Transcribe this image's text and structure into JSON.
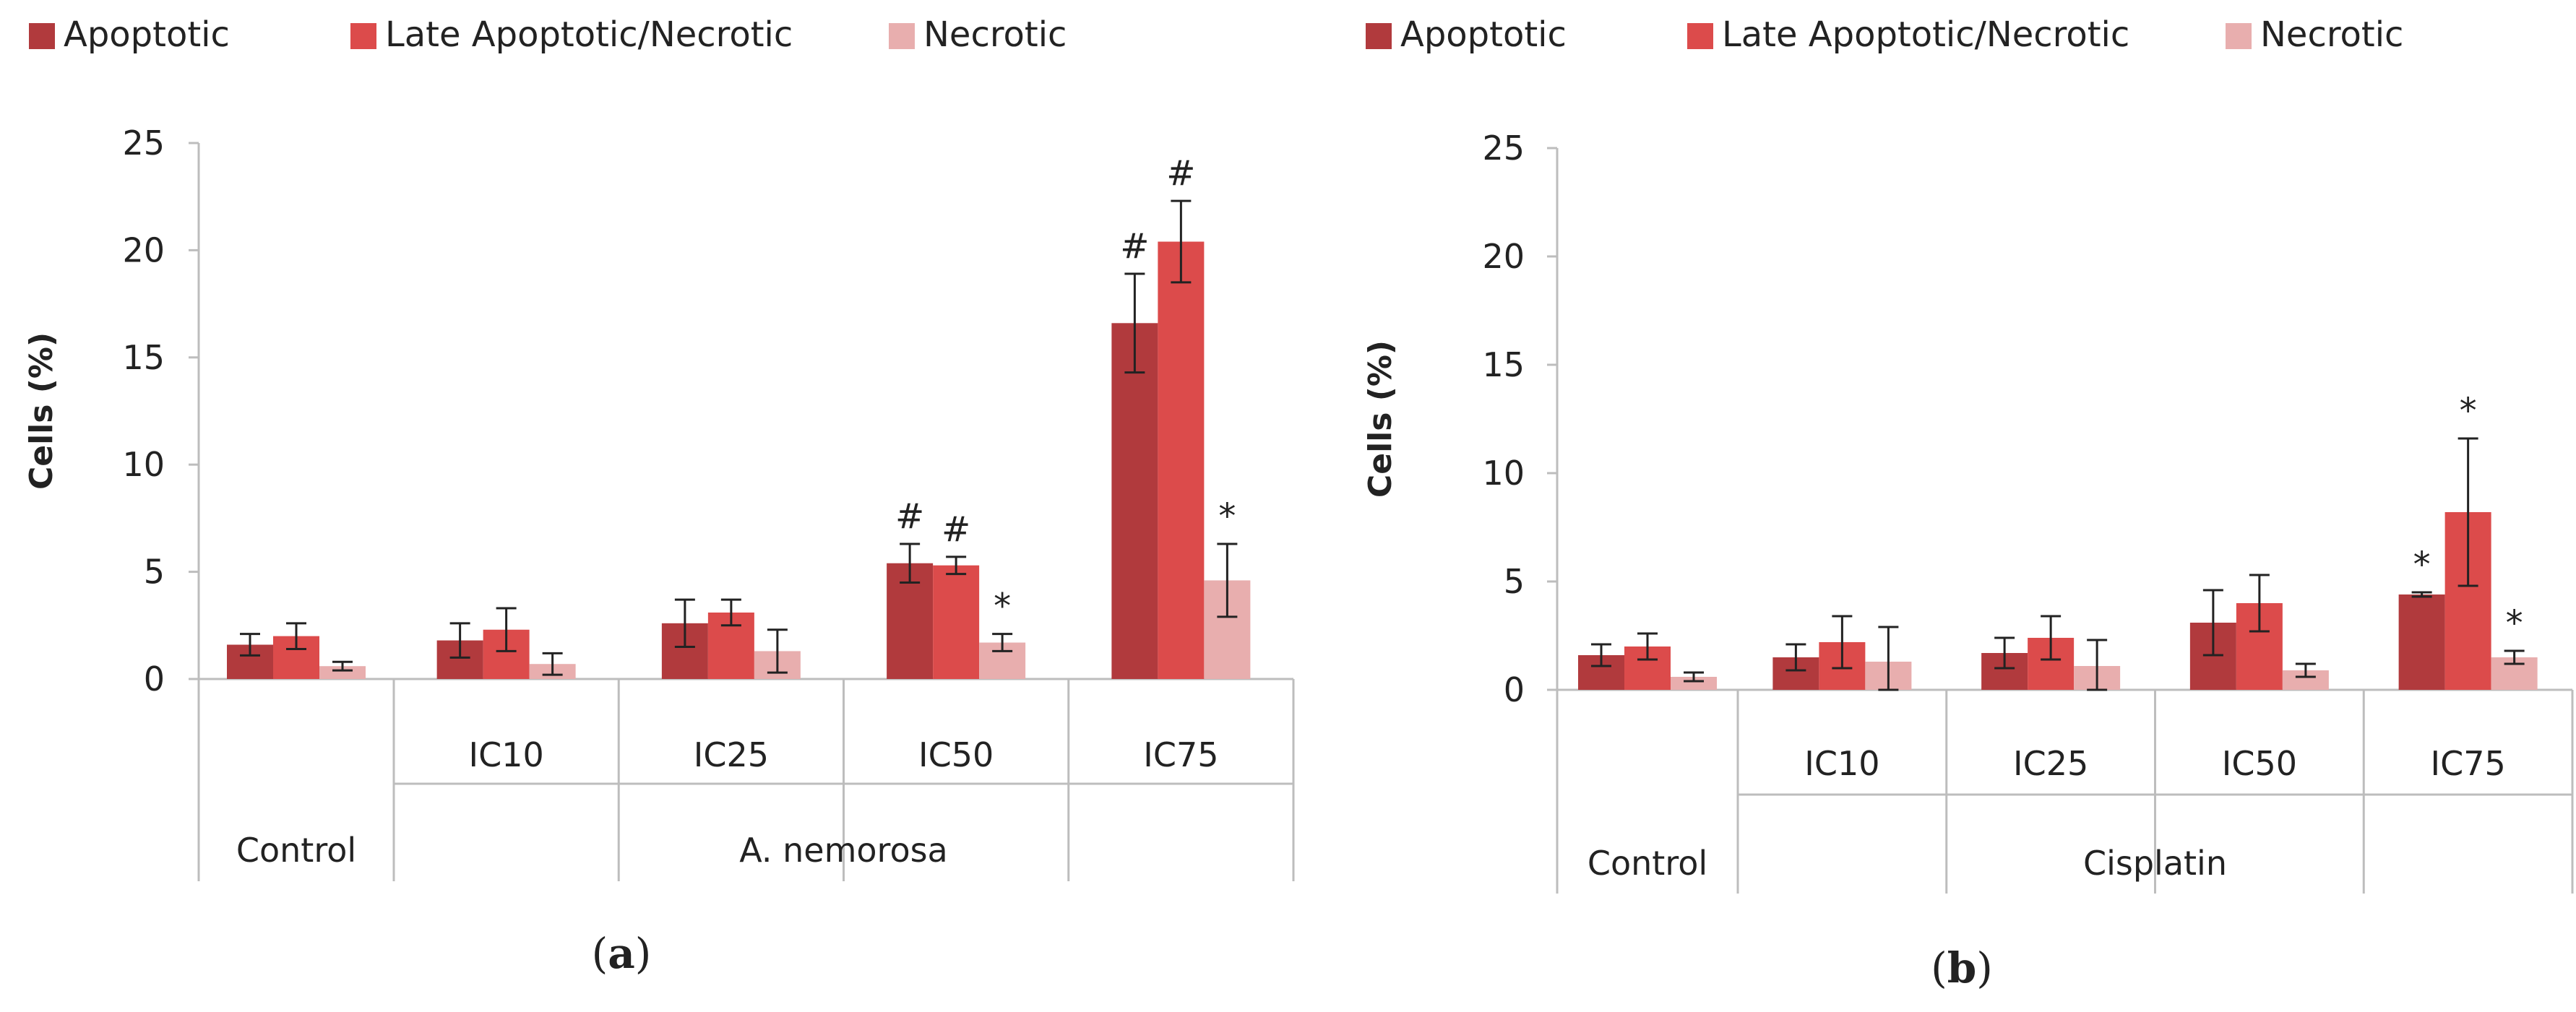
{
  "chart_data": [
    {
      "type": "bar",
      "panel_label": "a",
      "ylabel": "Cells (%)",
      "ylim": [
        0,
        25
      ],
      "yticks": [
        0,
        5,
        10,
        15,
        20,
        25
      ],
      "grid": false,
      "legend_position": "top",
      "categories": [
        "Control",
        "IC10",
        "IC25",
        "IC50",
        "IC75"
      ],
      "group_labels": [
        {
          "label": "Control",
          "categories": [
            "Control"
          ]
        },
        {
          "label": "A. nemorosa",
          "categories": [
            "IC10",
            "IC25",
            "IC50",
            "IC75"
          ]
        }
      ],
      "series": [
        {
          "name": "Apoptotic",
          "values": [
            1.6,
            1.8,
            2.6,
            5.4,
            16.6
          ],
          "errors": [
            0.5,
            0.8,
            1.1,
            0.9,
            2.3
          ],
          "annotations": [
            "",
            "",
            "",
            "#",
            "#"
          ]
        },
        {
          "name": "Late Apoptotic/Necrotic",
          "values": [
            2.0,
            2.3,
            3.1,
            5.3,
            20.4
          ],
          "errors": [
            0.6,
            1.0,
            0.6,
            0.4,
            1.9
          ],
          "annotations": [
            "",
            "",
            "",
            "#",
            "#"
          ]
        },
        {
          "name": "Necrotic",
          "values": [
            0.6,
            0.7,
            1.3,
            1.7,
            4.6
          ],
          "errors": [
            0.2,
            0.5,
            1.0,
            0.4,
            1.7
          ],
          "annotations": [
            "",
            "",
            "",
            "*",
            "*"
          ]
        }
      ]
    },
    {
      "type": "bar",
      "panel_label": "b",
      "ylabel": "Cells (%)",
      "ylim": [
        0,
        25
      ],
      "yticks": [
        0,
        5,
        10,
        15,
        20,
        25
      ],
      "grid": false,
      "legend_position": "top",
      "categories": [
        "Control",
        "IC10",
        "IC25",
        "IC50",
        "IC75"
      ],
      "group_labels": [
        {
          "label": "Control",
          "categories": [
            "Control"
          ]
        },
        {
          "label": "Cisplatin",
          "categories": [
            "IC10",
            "IC25",
            "IC50",
            "IC75"
          ]
        }
      ],
      "series": [
        {
          "name": "Apoptotic",
          "values": [
            1.6,
            1.5,
            1.7,
            3.1,
            4.4
          ],
          "errors": [
            0.5,
            0.6,
            0.7,
            1.5,
            0.1
          ],
          "annotations": [
            "",
            "",
            "",
            "",
            "*"
          ]
        },
        {
          "name": "Late Apoptotic/Necrotic",
          "values": [
            2.0,
            2.2,
            2.4,
            4.0,
            8.2
          ],
          "errors": [
            0.6,
            1.2,
            1.0,
            1.3,
            3.4
          ],
          "annotations": [
            "",
            "",
            "",
            "",
            "*"
          ]
        },
        {
          "name": "Necrotic",
          "values": [
            0.6,
            1.3,
            1.1,
            0.9,
            1.5
          ],
          "errors": [
            0.2,
            1.6,
            1.2,
            0.3,
            0.3
          ],
          "annotations": [
            "",
            "",
            "",
            "",
            "*"
          ]
        }
      ]
    }
  ],
  "colors": {
    "Apoptotic": "#b13a3d",
    "Late Apoptotic/Necrotic": "#dc4b4b",
    "Necrotic": "#e8aeae",
    "axis": "#bdbdbd",
    "error_bar": "#222222"
  }
}
